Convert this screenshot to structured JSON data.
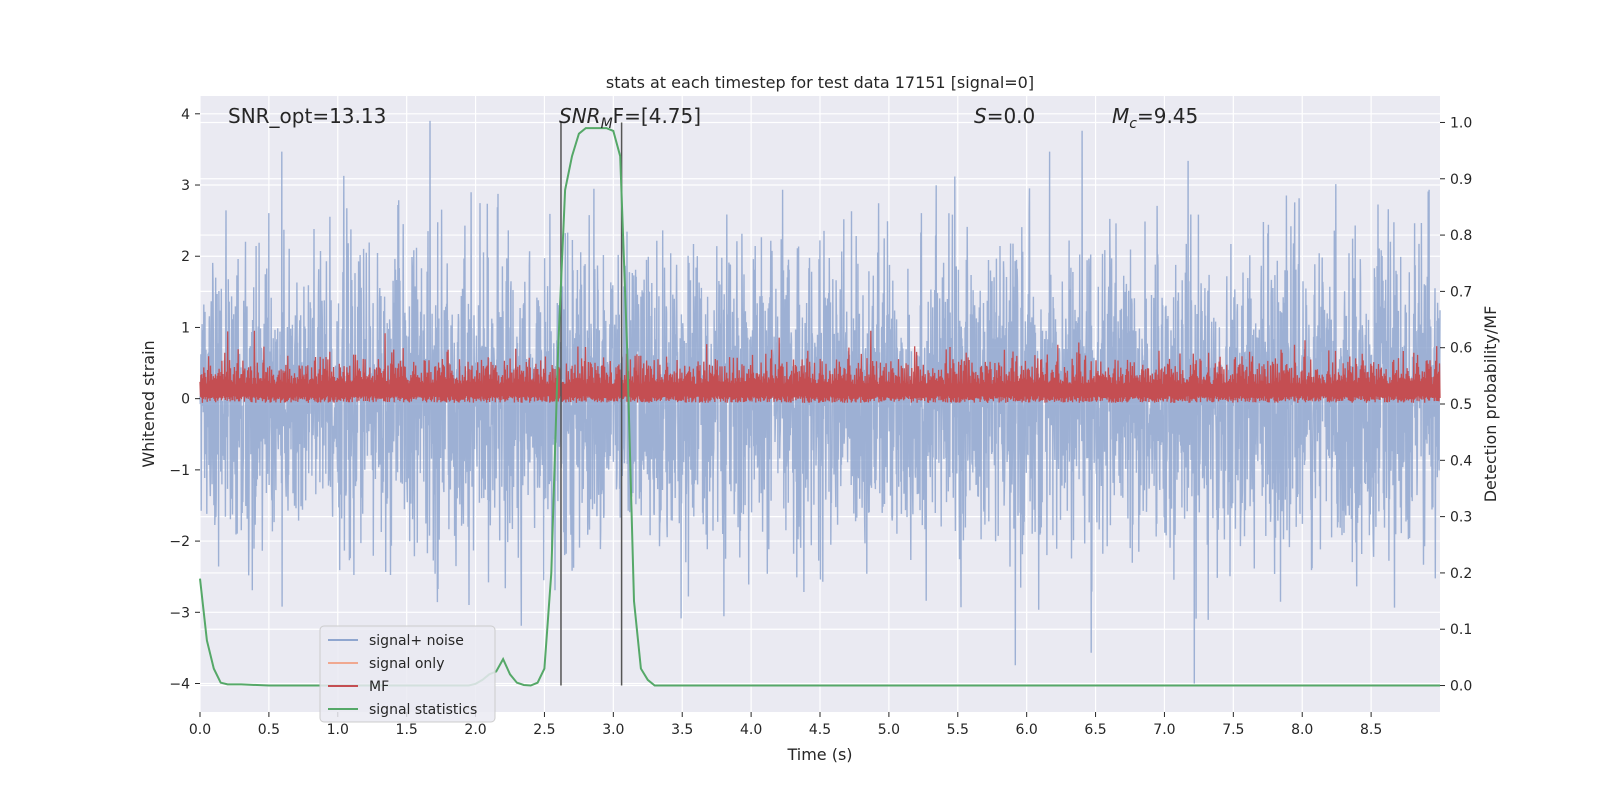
{
  "chart_data": {
    "type": "line",
    "title": "stats at each timestep for test data 17151 [signal=0]",
    "xlabel": "Time (s)",
    "ylabel": "Whitened strain",
    "ylabel_right": "Detection probability/MF",
    "xlim": [
      0.0,
      9.0
    ],
    "ylim": [
      -4.4,
      4.25
    ],
    "ylim_right": [
      -0.047,
      1.047
    ],
    "x_ticks": [
      "0.0",
      "0.5",
      "1.0",
      "1.5",
      "2.0",
      "2.5",
      "3.0",
      "3.5",
      "4.0",
      "4.5",
      "5.0",
      "5.5",
      "6.0",
      "6.5",
      "7.0",
      "7.5",
      "8.0",
      "8.5"
    ],
    "y_ticks": [
      "−4",
      "−3",
      "−2",
      "−1",
      "0",
      "1",
      "2",
      "3",
      "4"
    ],
    "y_right_ticks": [
      "0.0",
      "0.1",
      "0.2",
      "0.3",
      "0.4",
      "0.5",
      "0.6",
      "0.7",
      "0.8",
      "0.9",
      "1.0"
    ],
    "grid": true,
    "legend_position": "lower-left",
    "annotations": {
      "snr_opt": "SNR_opt=13.13",
      "snr_mf_main": "SNR",
      "snr_mf_sub": "M",
      "snr_mf_rest": "F=[4.75]",
      "s_label": "S",
      "s_rest": "=0.0",
      "mc_main": "M",
      "mc_sub": "c",
      "mc_rest": "=9.45"
    },
    "vertical_lines_x": [
      2.62,
      3.06
    ],
    "series": [
      {
        "name": "signal+ noise",
        "color": "#8fa6cf",
        "axis": "left",
        "amplitude_range": [
          -4.0,
          3.9
        ]
      },
      {
        "name": "signal only",
        "color": "#f0a890",
        "axis": "left",
        "values": []
      },
      {
        "name": "MF",
        "color": "#c44e52",
        "axis": "right",
        "amplitude_range": [
          0.5,
          0.63
        ]
      },
      {
        "name": "signal statistics",
        "color": "#55a868",
        "axis": "right",
        "x": [
          0.0,
          0.05,
          0.1,
          0.15,
          0.2,
          0.3,
          0.5,
          0.8,
          1.0,
          1.5,
          1.95,
          2.0,
          2.05,
          2.1,
          2.15,
          2.2,
          2.25,
          2.3,
          2.35,
          2.4,
          2.45,
          2.5,
          2.55,
          2.6,
          2.65,
          2.7,
          2.75,
          2.8,
          2.85,
          2.9,
          2.95,
          3.0,
          3.05,
          3.1,
          3.15,
          3.2,
          3.25,
          3.3,
          3.5,
          4.0,
          5.0,
          6.0,
          7.0,
          8.0,
          9.0
        ],
        "values": [
          0.19,
          0.08,
          0.03,
          0.005,
          0.002,
          0.002,
          0.0,
          0.0,
          0.0,
          0.0,
          0.0,
          0.003,
          0.01,
          0.02,
          0.025,
          0.047,
          0.02,
          0.005,
          0.001,
          0.0,
          0.005,
          0.03,
          0.2,
          0.6,
          0.88,
          0.94,
          0.98,
          0.99,
          0.99,
          0.99,
          0.99,
          0.985,
          0.94,
          0.6,
          0.15,
          0.03,
          0.01,
          0.0,
          0.0,
          0.0,
          0.0,
          0.0,
          0.0,
          0.0,
          0.0
        ]
      }
    ]
  }
}
